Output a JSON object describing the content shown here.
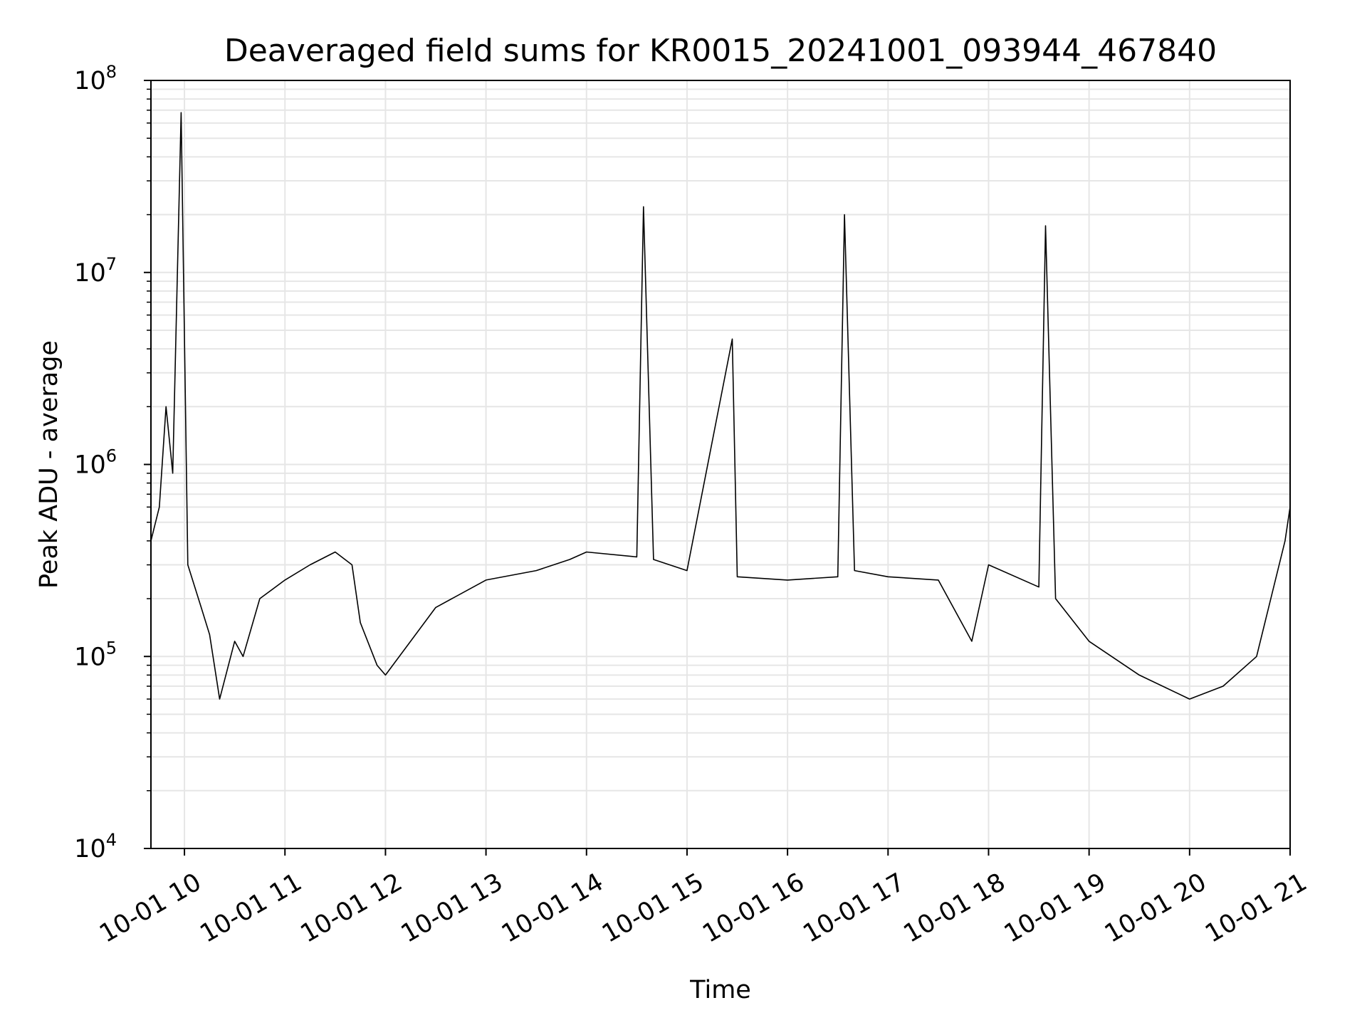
{
  "chart_data": {
    "type": "line",
    "title": "Deaveraged field sums for KR0015_20241001_093944_467840",
    "xlabel": "Time",
    "ylabel": "Peak ADU - average",
    "xscale": "time",
    "yscale": "log",
    "xlim": [
      "2024-10-01 09:40",
      "2024-10-01 21:00"
    ],
    "ylim": [
      10000,
      100000000
    ],
    "grid": true,
    "legend": "none",
    "x_ticks": [
      {
        "label": "10-01 10",
        "value": "2024-10-01 10:00"
      },
      {
        "label": "10-01 11",
        "value": "2024-10-01 11:00"
      },
      {
        "label": "10-01 12",
        "value": "2024-10-01 12:00"
      },
      {
        "label": "10-01 13",
        "value": "2024-10-01 13:00"
      },
      {
        "label": "10-01 14",
        "value": "2024-10-01 14:00"
      },
      {
        "label": "10-01 15",
        "value": "2024-10-01 15:00"
      },
      {
        "label": "10-01 16",
        "value": "2024-10-01 16:00"
      },
      {
        "label": "10-01 17",
        "value": "2024-10-01 17:00"
      },
      {
        "label": "10-01 18",
        "value": "2024-10-01 18:00"
      },
      {
        "label": "10-01 19",
        "value": "2024-10-01 19:00"
      },
      {
        "label": "10-01 20",
        "value": "2024-10-01 20:00"
      },
      {
        "label": "10-01 21",
        "value": "2024-10-01 21:00"
      }
    ],
    "y_ticks": [
      {
        "base": "10",
        "exp": "4",
        "value": 10000
      },
      {
        "base": "10",
        "exp": "5",
        "value": 100000
      },
      {
        "base": "10",
        "exp": "6",
        "value": 1000000
      },
      {
        "base": "10",
        "exp": "7",
        "value": 10000000
      },
      {
        "base": "10",
        "exp": "8",
        "value": 100000000
      }
    ],
    "series": [
      {
        "color": "#000000",
        "x": [
          "2024-10-01 09:40",
          "2024-10-01 09:45",
          "2024-10-01 09:49",
          "2024-10-01 09:53",
          "2024-10-01 09:58",
          "2024-10-01 10:02",
          "2024-10-01 10:10",
          "2024-10-01 10:15",
          "2024-10-01 10:21",
          "2024-10-01 10:30",
          "2024-10-01 10:35",
          "2024-10-01 10:45",
          "2024-10-01 11:00",
          "2024-10-01 11:15",
          "2024-10-01 11:30",
          "2024-10-01 11:40",
          "2024-10-01 11:45",
          "2024-10-01 11:55",
          "2024-10-01 12:00",
          "2024-10-01 12:30",
          "2024-10-01 13:00",
          "2024-10-01 13:30",
          "2024-10-01 13:50",
          "2024-10-01 14:00",
          "2024-10-01 14:30",
          "2024-10-01 14:34",
          "2024-10-01 14:40",
          "2024-10-01 15:00",
          "2024-10-01 15:27",
          "2024-10-01 15:30",
          "2024-10-01 16:00",
          "2024-10-01 16:30",
          "2024-10-01 16:34",
          "2024-10-01 16:40",
          "2024-10-01 17:00",
          "2024-10-01 17:30",
          "2024-10-01 17:50",
          "2024-10-01 18:00",
          "2024-10-01 18:30",
          "2024-10-01 18:34",
          "2024-10-01 18:40",
          "2024-10-01 19:00",
          "2024-10-01 19:30",
          "2024-10-01 20:00",
          "2024-10-01 20:20",
          "2024-10-01 20:40",
          "2024-10-01 20:57",
          "2024-10-01 21:00"
        ],
        "y": [
          400000,
          600000,
          2000000,
          900000,
          68000000,
          300000,
          180000,
          130000,
          60000,
          120000,
          100000,
          200000,
          250000,
          300000,
          350000,
          300000,
          150000,
          90000,
          80000,
          180000,
          250000,
          280000,
          320000,
          350000,
          330000,
          22000000,
          320000,
          280000,
          4500000,
          260000,
          250000,
          260000,
          20000000,
          280000,
          260000,
          250000,
          120000,
          300000,
          230000,
          17500000,
          200000,
          120000,
          80000,
          60000,
          70000,
          100000,
          400000,
          600000
        ]
      }
    ]
  }
}
